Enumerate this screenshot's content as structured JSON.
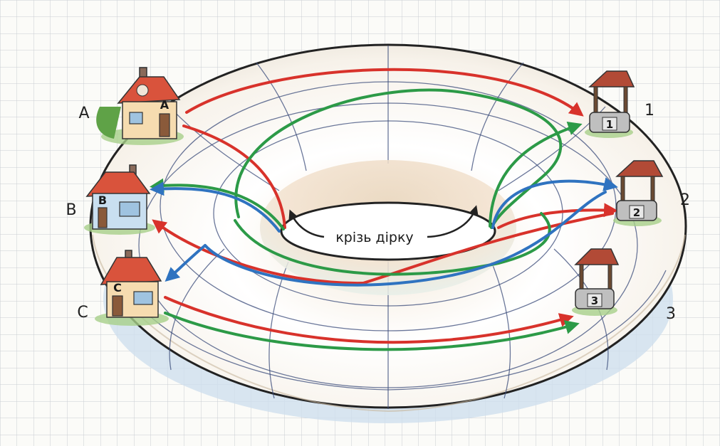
{
  "houses": [
    {
      "id": "A",
      "side_label": "A",
      "door_label": "A",
      "roof_color": "#d9533c",
      "wall_color": "#f6dcb0"
    },
    {
      "id": "B",
      "side_label": "B",
      "door_label": "B",
      "roof_color": "#d9533c",
      "wall_color": "#c9dff0"
    },
    {
      "id": "C",
      "side_label": "C",
      "door_label": "C",
      "roof_color": "#d9533c",
      "wall_color": "#f6dcb0"
    }
  ],
  "wells": [
    {
      "id": "1",
      "side_label": "1",
      "base_label": "1"
    },
    {
      "id": "2",
      "side_label": "2",
      "base_label": "2"
    },
    {
      "id": "3",
      "side_label": "3",
      "base_label": "3"
    }
  ],
  "center_label": "крізь дірку",
  "paths": {
    "colors": {
      "red": "#d8322b",
      "green": "#2c9a47",
      "blue": "#2f73c0"
    }
  },
  "torus": {
    "fill": "#ffffff",
    "outline": "#222222",
    "grid_color": "#3a4b7a"
  }
}
